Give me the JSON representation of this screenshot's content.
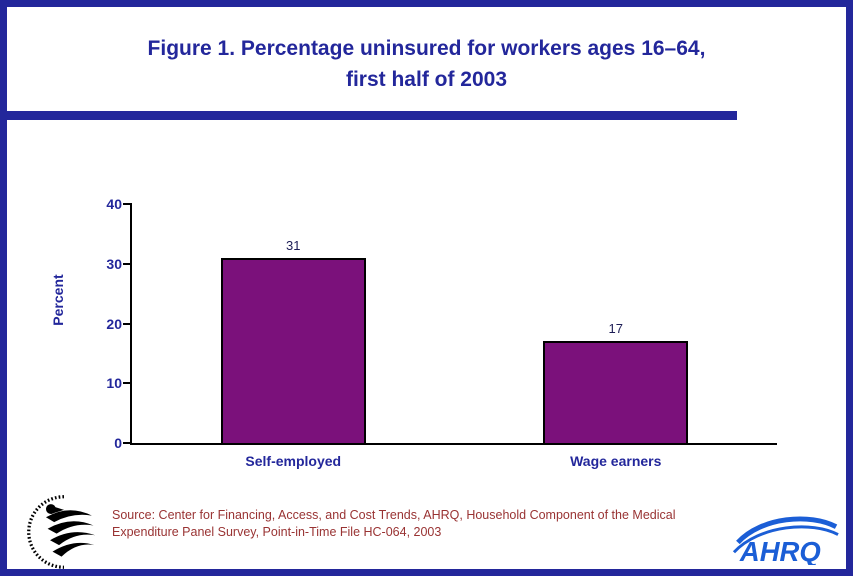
{
  "title": {
    "line1": "Figure 1. Percentage uninsured for workers ages 16–64,",
    "line2": "first half of 2003"
  },
  "chart_data": {
    "type": "bar",
    "categories": [
      "Self-employed",
      "Wage earners"
    ],
    "values": [
      31,
      17
    ],
    "title": "Figure 1. Percentage uninsured for workers ages 16–64, first half of 2003",
    "xlabel": "",
    "ylabel": "Percent",
    "ylim": [
      0,
      40
    ],
    "yticks": [
      0,
      10,
      20,
      30,
      40
    ],
    "bar_color": "#7B117B",
    "grid": false,
    "legend": "none"
  },
  "source": {
    "line1": "Source: Center for Financing, Access, and Cost Trends, AHRQ, Household Component of the Medical",
    "line2": "Expenditure Panel Survey, Point-in-Time File HC-064, 2003"
  },
  "logos": {
    "hhs": "hhs-seal",
    "ahrq_text": "AHRQ"
  },
  "colors": {
    "navy": "#23279B",
    "bar_purple": "#7B117B",
    "source_red": "#993333",
    "ahrq_blue": "#1B5ED6"
  }
}
